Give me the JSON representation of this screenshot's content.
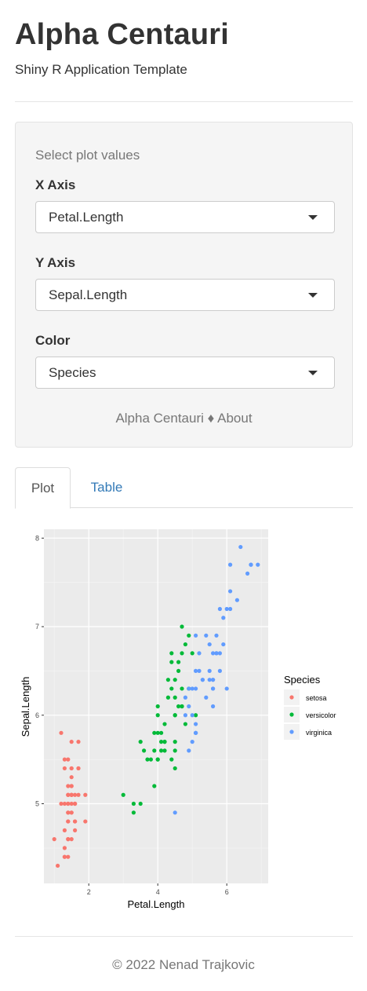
{
  "header": {
    "title": "Alpha Centauri",
    "subtitle": "Shiny R Application Template"
  },
  "sidebar": {
    "heading": "Select plot values",
    "x_axis": {
      "label": "X Axis",
      "value": "Petal.Length"
    },
    "y_axis": {
      "label": "Y Axis",
      "value": "Sepal.Length"
    },
    "color": {
      "label": "Color",
      "value": "Species"
    },
    "links": {
      "brand": "Alpha Centauri",
      "separator": "♦",
      "about": "About"
    }
  },
  "tabs": [
    {
      "label": "Plot",
      "active": true
    },
    {
      "label": "Table",
      "active": false
    }
  ],
  "footer": {
    "copyright": "© 2022 Nenad Trajkovic"
  },
  "chart_data": {
    "type": "scatter",
    "xlabel": "Petal.Length",
    "ylabel": "Sepal.Length",
    "xlim": [
      0.7,
      7.2
    ],
    "ylim": [
      4.1,
      8.1
    ],
    "x_ticks": [
      2,
      4,
      6
    ],
    "y_ticks": [
      5,
      6,
      7,
      8
    ],
    "grid": true,
    "legend": {
      "title": "Species",
      "position": "right"
    },
    "series": [
      {
        "name": "setosa",
        "color": "#F8766D",
        "points": [
          [
            1.4,
            5.1
          ],
          [
            1.4,
            4.9
          ],
          [
            1.3,
            4.7
          ],
          [
            1.5,
            4.6
          ],
          [
            1.4,
            5.0
          ],
          [
            1.7,
            5.4
          ],
          [
            1.4,
            4.6
          ],
          [
            1.5,
            5.0
          ],
          [
            1.4,
            4.4
          ],
          [
            1.5,
            4.9
          ],
          [
            1.5,
            5.4
          ],
          [
            1.6,
            4.8
          ],
          [
            1.4,
            4.8
          ],
          [
            1.1,
            4.3
          ],
          [
            1.2,
            5.8
          ],
          [
            1.5,
            5.7
          ],
          [
            1.3,
            5.4
          ],
          [
            1.4,
            5.1
          ],
          [
            1.7,
            5.7
          ],
          [
            1.5,
            5.1
          ],
          [
            1.7,
            5.4
          ],
          [
            1.5,
            5.1
          ],
          [
            1.0,
            4.6
          ],
          [
            1.7,
            5.1
          ],
          [
            1.9,
            4.8
          ],
          [
            1.6,
            5.0
          ],
          [
            1.6,
            5.0
          ],
          [
            1.5,
            5.2
          ],
          [
            1.4,
            5.2
          ],
          [
            1.6,
            4.7
          ],
          [
            1.6,
            4.8
          ],
          [
            1.5,
            5.4
          ],
          [
            1.5,
            5.2
          ],
          [
            1.4,
            5.5
          ],
          [
            1.5,
            4.9
          ],
          [
            1.2,
            5.0
          ],
          [
            1.3,
            5.5
          ],
          [
            1.4,
            4.9
          ],
          [
            1.3,
            4.4
          ],
          [
            1.5,
            5.1
          ],
          [
            1.3,
            5.0
          ],
          [
            1.3,
            4.5
          ],
          [
            1.3,
            4.4
          ],
          [
            1.6,
            5.0
          ],
          [
            1.9,
            5.1
          ],
          [
            1.4,
            4.8
          ],
          [
            1.6,
            5.1
          ],
          [
            1.4,
            4.6
          ],
          [
            1.5,
            5.3
          ],
          [
            1.4,
            5.0
          ]
        ]
      },
      {
        "name": "versicolor",
        "color": "#00BA38",
        "points": [
          [
            4.7,
            7.0
          ],
          [
            4.5,
            6.4
          ],
          [
            4.9,
            6.9
          ],
          [
            4.0,
            5.5
          ],
          [
            4.6,
            6.5
          ],
          [
            4.5,
            5.7
          ],
          [
            4.7,
            6.3
          ],
          [
            3.3,
            4.9
          ],
          [
            4.6,
            6.6
          ],
          [
            3.9,
            5.2
          ],
          [
            3.5,
            5.0
          ],
          [
            4.2,
            5.9
          ],
          [
            4.0,
            6.0
          ],
          [
            4.7,
            6.1
          ],
          [
            3.6,
            5.6
          ],
          [
            4.4,
            6.7
          ],
          [
            4.5,
            5.6
          ],
          [
            4.1,
            5.8
          ],
          [
            4.5,
            6.2
          ],
          [
            3.9,
            5.6
          ],
          [
            4.8,
            5.9
          ],
          [
            4.0,
            6.1
          ],
          [
            4.9,
            6.3
          ],
          [
            4.7,
            6.1
          ],
          [
            4.3,
            6.4
          ],
          [
            4.4,
            6.6
          ],
          [
            4.8,
            6.8
          ],
          [
            5.0,
            6.7
          ],
          [
            4.5,
            6.0
          ],
          [
            3.5,
            5.7
          ],
          [
            3.8,
            5.5
          ],
          [
            3.7,
            5.5
          ],
          [
            3.9,
            5.8
          ],
          [
            5.1,
            6.0
          ],
          [
            4.5,
            5.4
          ],
          [
            4.5,
            6.0
          ],
          [
            4.7,
            6.7
          ],
          [
            4.4,
            6.3
          ],
          [
            4.1,
            5.6
          ],
          [
            4.0,
            5.5
          ],
          [
            4.4,
            5.5
          ],
          [
            4.6,
            6.1
          ],
          [
            4.0,
            5.8
          ],
          [
            3.3,
            5.0
          ],
          [
            4.2,
            5.6
          ],
          [
            4.2,
            5.7
          ],
          [
            4.2,
            5.7
          ],
          [
            4.3,
            6.2
          ],
          [
            3.0,
            5.1
          ],
          [
            4.1,
            5.7
          ]
        ]
      },
      {
        "name": "virginica",
        "color": "#619CFF",
        "points": [
          [
            6.0,
            6.3
          ],
          [
            5.1,
            5.8
          ],
          [
            5.9,
            7.1
          ],
          [
            5.6,
            6.3
          ],
          [
            5.8,
            6.5
          ],
          [
            6.6,
            7.6
          ],
          [
            4.5,
            4.9
          ],
          [
            6.3,
            7.3
          ],
          [
            5.8,
            6.7
          ],
          [
            6.1,
            7.2
          ],
          [
            5.1,
            6.5
          ],
          [
            5.3,
            6.4
          ],
          [
            5.5,
            6.8
          ],
          [
            5.0,
            5.7
          ],
          [
            5.1,
            5.8
          ],
          [
            5.3,
            6.4
          ],
          [
            5.5,
            6.5
          ],
          [
            6.7,
            7.7
          ],
          [
            6.9,
            7.7
          ],
          [
            5.0,
            6.0
          ],
          [
            5.7,
            6.9
          ],
          [
            4.9,
            5.6
          ],
          [
            6.7,
            7.7
          ],
          [
            4.9,
            6.3
          ],
          [
            5.7,
            6.7
          ],
          [
            6.0,
            7.2
          ],
          [
            4.8,
            6.2
          ],
          [
            4.9,
            6.1
          ],
          [
            5.6,
            6.4
          ],
          [
            5.8,
            7.2
          ],
          [
            6.1,
            7.4
          ],
          [
            6.4,
            7.9
          ],
          [
            5.6,
            6.4
          ],
          [
            5.1,
            6.3
          ],
          [
            5.6,
            6.1
          ],
          [
            6.1,
            7.7
          ],
          [
            5.6,
            6.3
          ],
          [
            5.5,
            6.4
          ],
          [
            4.8,
            6.0
          ],
          [
            5.4,
            6.9
          ],
          [
            5.6,
            6.7
          ],
          [
            5.1,
            6.9
          ],
          [
            5.1,
            5.8
          ],
          [
            5.9,
            6.8
          ],
          [
            5.7,
            6.7
          ],
          [
            5.2,
            6.7
          ],
          [
            5.0,
            6.3
          ],
          [
            5.2,
            6.5
          ],
          [
            5.4,
            6.2
          ],
          [
            5.1,
            5.9
          ]
        ]
      }
    ]
  }
}
